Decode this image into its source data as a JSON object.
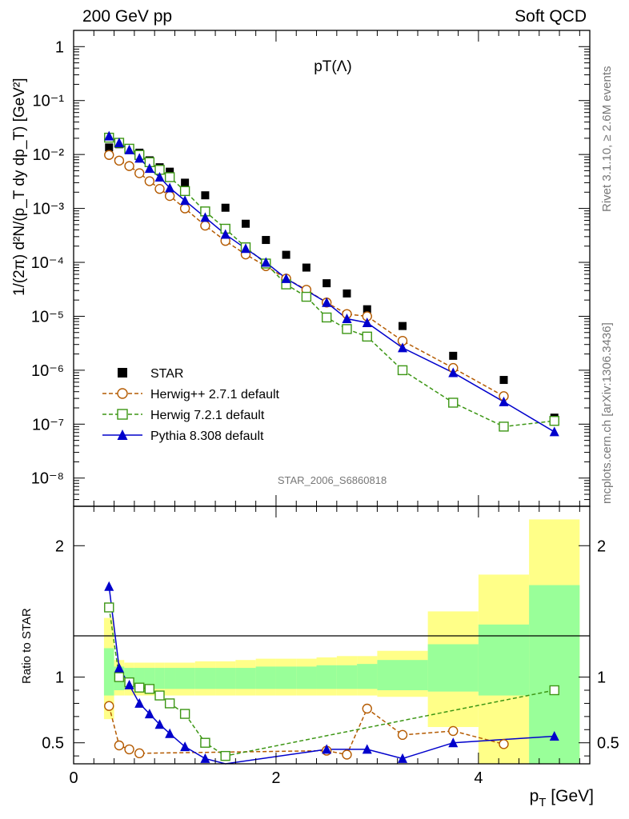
{
  "header": {
    "left": "200 GeV pp",
    "right": "Soft QCD"
  },
  "side_text": {
    "rivet": "Rivet 3.1.10, ≥ 2.6M events",
    "mcplots": "mcplots.cern.ch [arXiv:1306.3436]"
  },
  "watermark": "STAR_2006_S6860818",
  "chart_data": [
    {
      "type": "scatter",
      "title": "pT(Λ)",
      "ylabel": "1/(2π) d²N/(p_T dy dp_T) [GeV²]",
      "xlabel": "p_T [GeV]",
      "xlim": [
        0,
        5.1
      ],
      "ylim": [
        3e-09,
        2
      ],
      "yscale": "log",
      "ytick_labels": [
        "1",
        "10⁻¹",
        "10⁻²",
        "10⁻³",
        "10⁻⁴",
        "10⁻⁵",
        "10⁻⁶",
        "10⁻⁷",
        "10⁻⁸"
      ],
      "legend_position": "bottom-left",
      "series": [
        {
          "name": "STAR",
          "color": "#000000",
          "marker": "filled-square",
          "x": [
            0.35,
            0.45,
            0.55,
            0.65,
            0.75,
            0.85,
            0.95,
            1.1,
            1.3,
            1.5,
            1.7,
            1.9,
            2.1,
            2.3,
            2.5,
            2.7,
            2.9,
            3.25,
            3.75,
            4.25,
            4.75
          ],
          "y": [
            0.0135,
            0.0155,
            0.013,
            0.0108,
            0.0078,
            0.0058,
            0.0048,
            0.003,
            0.00175,
            0.00103,
            0.00052,
            0.00026,
            0.000138,
            8e-05,
            4.1e-05,
            2.65e-05,
            1.35e-05,
            6.6e-06,
            1.85e-06,
            6.6e-07,
            1.32e-07
          ]
        },
        {
          "name": "Herwig++ 2.7.1 default",
          "color": "#b45a00",
          "marker": "open-circle",
          "dashed": true,
          "x": [
            0.35,
            0.45,
            0.55,
            0.65,
            0.75,
            0.85,
            0.95,
            1.1,
            1.3,
            1.5,
            1.7,
            1.9,
            2.1,
            2.3,
            2.5,
            2.7,
            2.9,
            3.25,
            3.75,
            4.25
          ],
          "y": [
            0.0098,
            0.0077,
            0.0061,
            0.0045,
            0.0032,
            0.0023,
            0.0017,
            0.001,
            0.00048,
            0.00025,
            0.00014,
            8.5e-05,
            5e-05,
            3.1e-05,
            1.8e-05,
            1.1e-05,
            1e-05,
            3.5e-06,
            1.1e-06,
            3.3e-07
          ]
        },
        {
          "name": "Herwig 7.2.1 default",
          "color": "#3c9614",
          "marker": "open-square",
          "dashed": true,
          "x": [
            0.35,
            0.45,
            0.55,
            0.65,
            0.75,
            0.85,
            0.95,
            1.1,
            1.3,
            1.5,
            1.7,
            1.9,
            2.1,
            2.3,
            2.5,
            2.7,
            2.9,
            3.25,
            3.75,
            4.25,
            4.75
          ],
          "y": [
            0.0205,
            0.0165,
            0.0128,
            0.0098,
            0.0072,
            0.0052,
            0.0038,
            0.0021,
            0.00088,
            0.00042,
            0.00019,
            9.5e-05,
            3.9e-05,
            2.3e-05,
            9.5e-06,
            5.8e-06,
            4.2e-06,
            1e-06,
            2.5e-07,
            9e-08,
            1.15e-07
          ]
        },
        {
          "name": "Pythia 8.308 default",
          "color": "#0000cc",
          "marker": "filled-triangle",
          "dashed": false,
          "x": [
            0.35,
            0.45,
            0.55,
            0.65,
            0.75,
            0.85,
            0.95,
            1.1,
            1.3,
            1.5,
            1.7,
            1.9,
            2.1,
            2.5,
            2.7,
            2.9,
            3.25,
            3.75,
            4.25,
            4.75
          ],
          "y": [
            0.022,
            0.0165,
            0.0122,
            0.0085,
            0.0055,
            0.0038,
            0.0024,
            0.0014,
            0.00068,
            0.00033,
            0.00018,
            0.0001,
            5e-05,
            1.8e-05,
            9e-06,
            7.6e-06,
            2.6e-06,
            9e-07,
            2.6e-07,
            7.2e-08
          ]
        }
      ]
    },
    {
      "type": "scatter",
      "ylabel": "Ratio to STAR",
      "xlabel": "p_T [GeV]",
      "xlim": [
        0,
        5.1
      ],
      "ylim": [
        0.34,
        2.3
      ],
      "xtick_labels": [
        "0",
        "2",
        "4"
      ],
      "ytick_labels": [
        "0.5",
        "1",
        "2"
      ],
      "band_edges": [
        0.3,
        0.4,
        0.5,
        0.6,
        0.7,
        0.8,
        0.9,
        1.0,
        1.2,
        1.4,
        1.6,
        1.8,
        2.0,
        2.2,
        2.4,
        2.6,
        2.8,
        3.0,
        3.5,
        4.0,
        4.5,
        5.0
      ],
      "band_green": [
        [
          0.86,
          1.22
        ],
        [
          0.9,
          1.08
        ],
        [
          0.91,
          1.07
        ],
        [
          0.91,
          1.07
        ],
        [
          0.91,
          1.07
        ],
        [
          0.91,
          1.07
        ],
        [
          0.91,
          1.07
        ],
        [
          0.91,
          1.07
        ],
        [
          0.91,
          1.07
        ],
        [
          0.91,
          1.07
        ],
        [
          0.91,
          1.07
        ],
        [
          0.91,
          1.08
        ],
        [
          0.91,
          1.08
        ],
        [
          0.91,
          1.08
        ],
        [
          0.91,
          1.09
        ],
        [
          0.91,
          1.09
        ],
        [
          0.91,
          1.1
        ],
        [
          0.9,
          1.13
        ],
        [
          0.89,
          1.25
        ],
        [
          0.86,
          1.4
        ],
        [
          0.3,
          1.7
        ]
      ],
      "band_yellow": [
        [
          0.68,
          1.45
        ],
        [
          0.86,
          1.13
        ],
        [
          0.86,
          1.11
        ],
        [
          0.86,
          1.11
        ],
        [
          0.86,
          1.11
        ],
        [
          0.86,
          1.11
        ],
        [
          0.86,
          1.11
        ],
        [
          0.86,
          1.11
        ],
        [
          0.86,
          1.12
        ],
        [
          0.86,
          1.12
        ],
        [
          0.86,
          1.13
        ],
        [
          0.86,
          1.14
        ],
        [
          0.86,
          1.14
        ],
        [
          0.86,
          1.14
        ],
        [
          0.86,
          1.15
        ],
        [
          0.86,
          1.16
        ],
        [
          0.86,
          1.16
        ],
        [
          0.85,
          1.2
        ],
        [
          0.62,
          1.5
        ],
        [
          0.3,
          1.78
        ],
        [
          0.3,
          2.2
        ]
      ],
      "series": [
        {
          "name": "Herwig++ 2.7.1 default",
          "color": "#b45a00",
          "marker": "open-circle",
          "dashed": true,
          "x": [
            0.35,
            0.45,
            0.55,
            0.65,
            2.5,
            2.7,
            2.9,
            3.25,
            3.75,
            4.25
          ],
          "y": [
            0.78,
            0.48,
            0.45,
            0.42,
            0.44,
            0.41,
            0.76,
            0.56,
            0.59,
            0.49
          ]
        },
        {
          "name": "Herwig 7.2.1 default",
          "color": "#3c9614",
          "marker": "open-square",
          "dashed": true,
          "x": [
            0.35,
            0.45,
            0.55,
            0.65,
            0.75,
            0.85,
            0.95,
            1.1,
            1.3,
            1.5,
            4.75
          ],
          "y": [
            1.53,
            1.0,
            0.96,
            0.92,
            0.91,
            0.86,
            0.8,
            0.72,
            0.5,
            0.4,
            0.9
          ]
        },
        {
          "name": "Pythia 8.308 default",
          "color": "#0000cc",
          "marker": "filled-triangle",
          "dashed": false,
          "x": [
            0.35,
            0.45,
            0.55,
            0.65,
            0.75,
            0.85,
            0.95,
            1.1,
            1.3,
            1.5,
            2.5,
            2.9,
            3.25,
            3.75,
            4.75
          ],
          "y": [
            1.69,
            1.07,
            0.94,
            0.8,
            0.72,
            0.64,
            0.57,
            0.47,
            0.38,
            0.3,
            0.45,
            0.45,
            0.38,
            0.5,
            0.55
          ]
        }
      ]
    }
  ]
}
